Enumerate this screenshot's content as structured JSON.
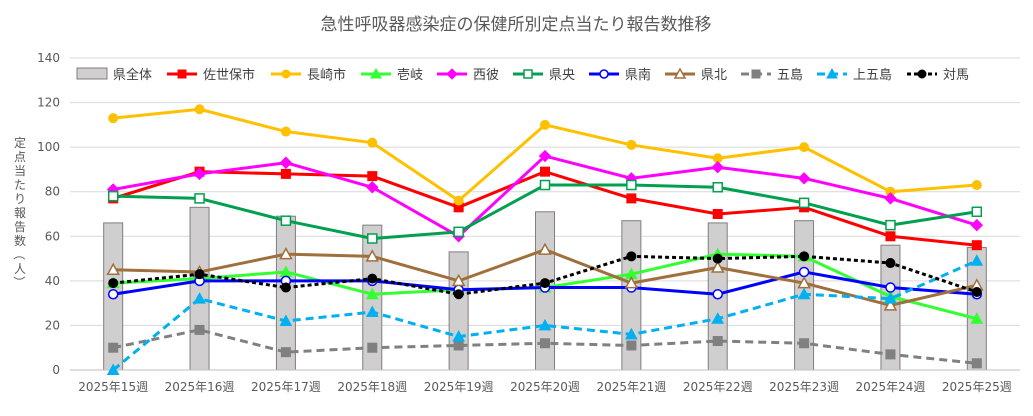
{
  "chart_data": {
    "type": "line",
    "title": "急性呼吸器感染症の保健所別定点当たり報告数推移",
    "ylabel": "定点当たり報告数（人）",
    "xlabel": "",
    "ylim": [
      0,
      140
    ],
    "yticks": [
      0,
      20,
      40,
      60,
      80,
      100,
      120,
      140
    ],
    "grid": true,
    "legend_position": "top",
    "categories": [
      "2025年15週",
      "2025年16週",
      "2025年17週",
      "2025年18週",
      "2025年19週",
      "2025年20週",
      "2025年21週",
      "2025年22週",
      "2025年23週",
      "2025年24週",
      "2025年25週"
    ],
    "series": [
      {
        "name": "県全体",
        "kind": "bar",
        "color": "#d0cece",
        "values": [
          66,
          73,
          69,
          65,
          53,
          71,
          67,
          66,
          67,
          56,
          55
        ]
      },
      {
        "name": "佐世保市",
        "kind": "line",
        "color": "#ff0000",
        "marker": "square",
        "dash": "solid",
        "values": [
          77,
          89,
          88,
          87,
          73,
          89,
          77,
          70,
          73,
          60,
          56
        ]
      },
      {
        "name": "長崎市",
        "kind": "line",
        "color": "#ffc000",
        "marker": "circle",
        "dash": "solid",
        "values": [
          113,
          117,
          107,
          102,
          76,
          110,
          101,
          95,
          100,
          80,
          83
        ]
      },
      {
        "name": "壱岐",
        "kind": "line",
        "color": "#33ff33",
        "marker": "triangle",
        "dash": "solid",
        "values": [
          39,
          41,
          44,
          34,
          36,
          37,
          43,
          52,
          51,
          33,
          23
        ]
      },
      {
        "name": "西彼",
        "kind": "line",
        "color": "#ff00ff",
        "marker": "diamond",
        "dash": "solid",
        "values": [
          81,
          88,
          93,
          82,
          60,
          96,
          86,
          91,
          86,
          77,
          65
        ]
      },
      {
        "name": "県央",
        "kind": "line",
        "color": "#00a050",
        "marker": "open-square",
        "dash": "solid",
        "values": [
          78,
          77,
          67,
          59,
          62,
          83,
          83,
          82,
          75,
          65,
          71
        ]
      },
      {
        "name": "県南",
        "kind": "line",
        "color": "#0000ff",
        "marker": "open-circle",
        "dash": "solid",
        "values": [
          34,
          40,
          40,
          40,
          36,
          37,
          37,
          34,
          44,
          37,
          34
        ]
      },
      {
        "name": "県北",
        "kind": "line",
        "color": "#a0703c",
        "marker": "open-triangle",
        "dash": "solid",
        "values": [
          45,
          44,
          52,
          51,
          40,
          54,
          39,
          46,
          39,
          29,
          38
        ]
      },
      {
        "name": "五島",
        "kind": "line",
        "color": "#808080",
        "marker": "square",
        "dash": "dashed",
        "values": [
          10,
          18,
          8,
          10,
          11,
          12,
          11,
          13,
          12,
          7,
          3
        ]
      },
      {
        "name": "上五島",
        "kind": "line",
        "color": "#00b0f0",
        "marker": "triangle",
        "dash": "dashed",
        "values": [
          0,
          32,
          22,
          26,
          15,
          20,
          16,
          23,
          34,
          32,
          49
        ]
      },
      {
        "name": "対馬",
        "kind": "line",
        "color": "#000000",
        "marker": "circle",
        "dash": "dotted",
        "values": [
          39,
          43,
          37,
          41,
          34,
          39,
          51,
          50,
          51,
          48,
          35
        ]
      }
    ]
  }
}
